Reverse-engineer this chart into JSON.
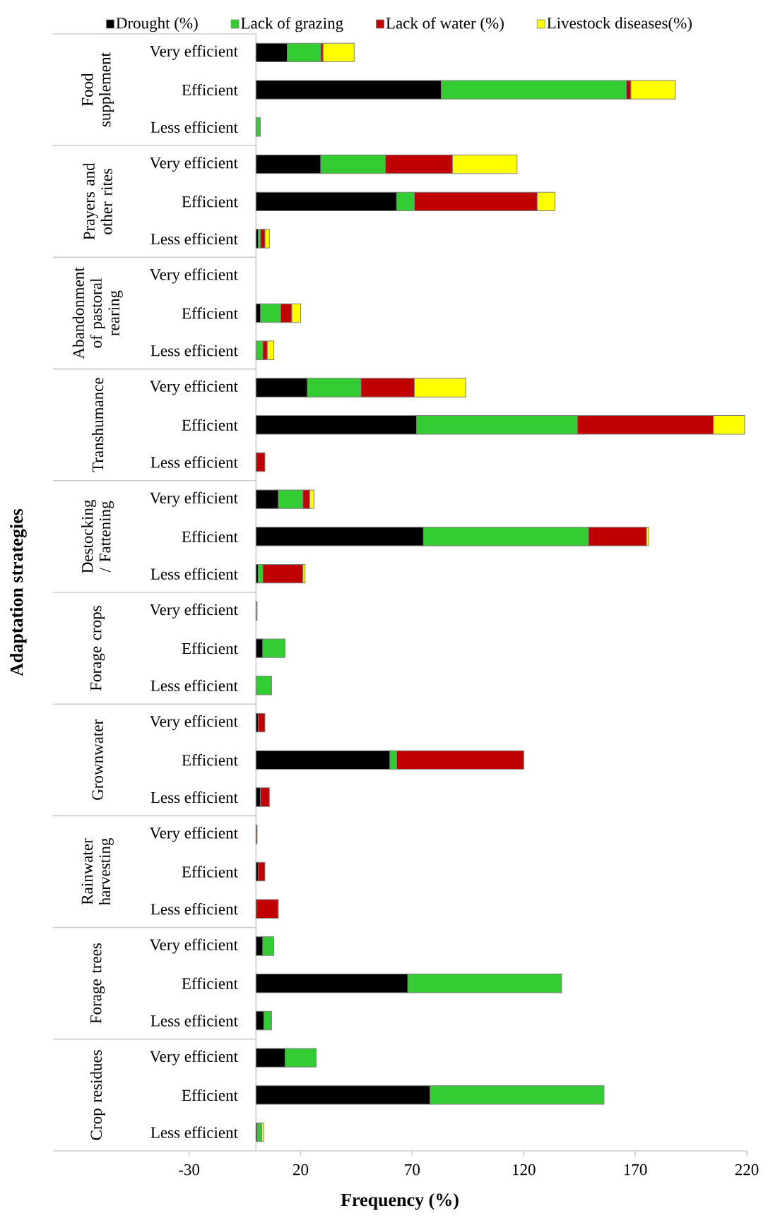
{
  "chart_data": {
    "type": "bar",
    "orientation": "horizontal",
    "stacked": true,
    "legend": "top",
    "xlabel": "Frequency (%)",
    "ylabel": "Adaptation strategies",
    "categories": [
      "Very efficient",
      "Efficient",
      "Less efficient",
      "Very efficient",
      "Efficient",
      "Less efficient",
      "Very efficient",
      "Efficient",
      "Less efficient",
      "Very efficient",
      "Efficient",
      "Less efficient",
      "Very efficient",
      "Efficient",
      "Less efficient",
      "Very efficient",
      "Efficient",
      "Less efficient",
      "Very efficient",
      "Efficient",
      "Less efficient",
      "Very efficient",
      "Efficient",
      "Less efficient",
      "Very efficient",
      "Efficient",
      "Less efficient",
      "Very efficient",
      "Efficient",
      "Less efficient"
    ],
    "annotations": [
      "Food supplement",
      "Prayers and other rites",
      "Abandonment of pastoral rearing",
      "Transhumance",
      "Destocking / Fattening",
      "Forage crops",
      "Grownwater",
      "Rainwater harvesting",
      "Forage trees",
      "Crop residues"
    ],
    "xlim": [
      -91,
      220
    ],
    "xticks": [
      -30,
      20,
      70,
      120,
      170,
      220
    ],
    "series": [
      {
        "name": "Drought (%)",
        "color": "#000000",
        "values": [
          14,
          83,
          0,
          29,
          63,
          1,
          0,
          2,
          0,
          23,
          72,
          0,
          10,
          75,
          1,
          0,
          3,
          0,
          1,
          60,
          2,
          0,
          1,
          0,
          3,
          68,
          3.5,
          13,
          78,
          0.5
        ]
      },
      {
        "name": "Lack of grazing",
        "color": "#33cc33",
        "values": [
          15,
          83,
          2,
          29,
          8,
          1,
          0,
          9,
          3,
          24,
          72,
          0,
          11,
          74,
          2,
          0.5,
          10,
          7,
          0,
          3,
          0,
          0,
          0,
          0,
          5,
          69,
          3.5,
          14,
          78,
          2
        ]
      },
      {
        "name": "Lack of water (%)",
        "color": "#c00000",
        "values": [
          1,
          2,
          0,
          30,
          55,
          2,
          0,
          5,
          2,
          24,
          61,
          4,
          3,
          26,
          18,
          0,
          0,
          0,
          3,
          57,
          4,
          0.5,
          3,
          10,
          0,
          0,
          0,
          0,
          0,
          null
        ]
      },
      {
        "name": "Livestock diseases(%)",
        "color": "#ffff00",
        "values": [
          14,
          20,
          0,
          29,
          8,
          2,
          0,
          4,
          3,
          23,
          14,
          0,
          2,
          1,
          1,
          0,
          0,
          0,
          0,
          0,
          0,
          0,
          0,
          0,
          0,
          0,
          0,
          0,
          0,
          1
        ]
      }
    ]
  }
}
